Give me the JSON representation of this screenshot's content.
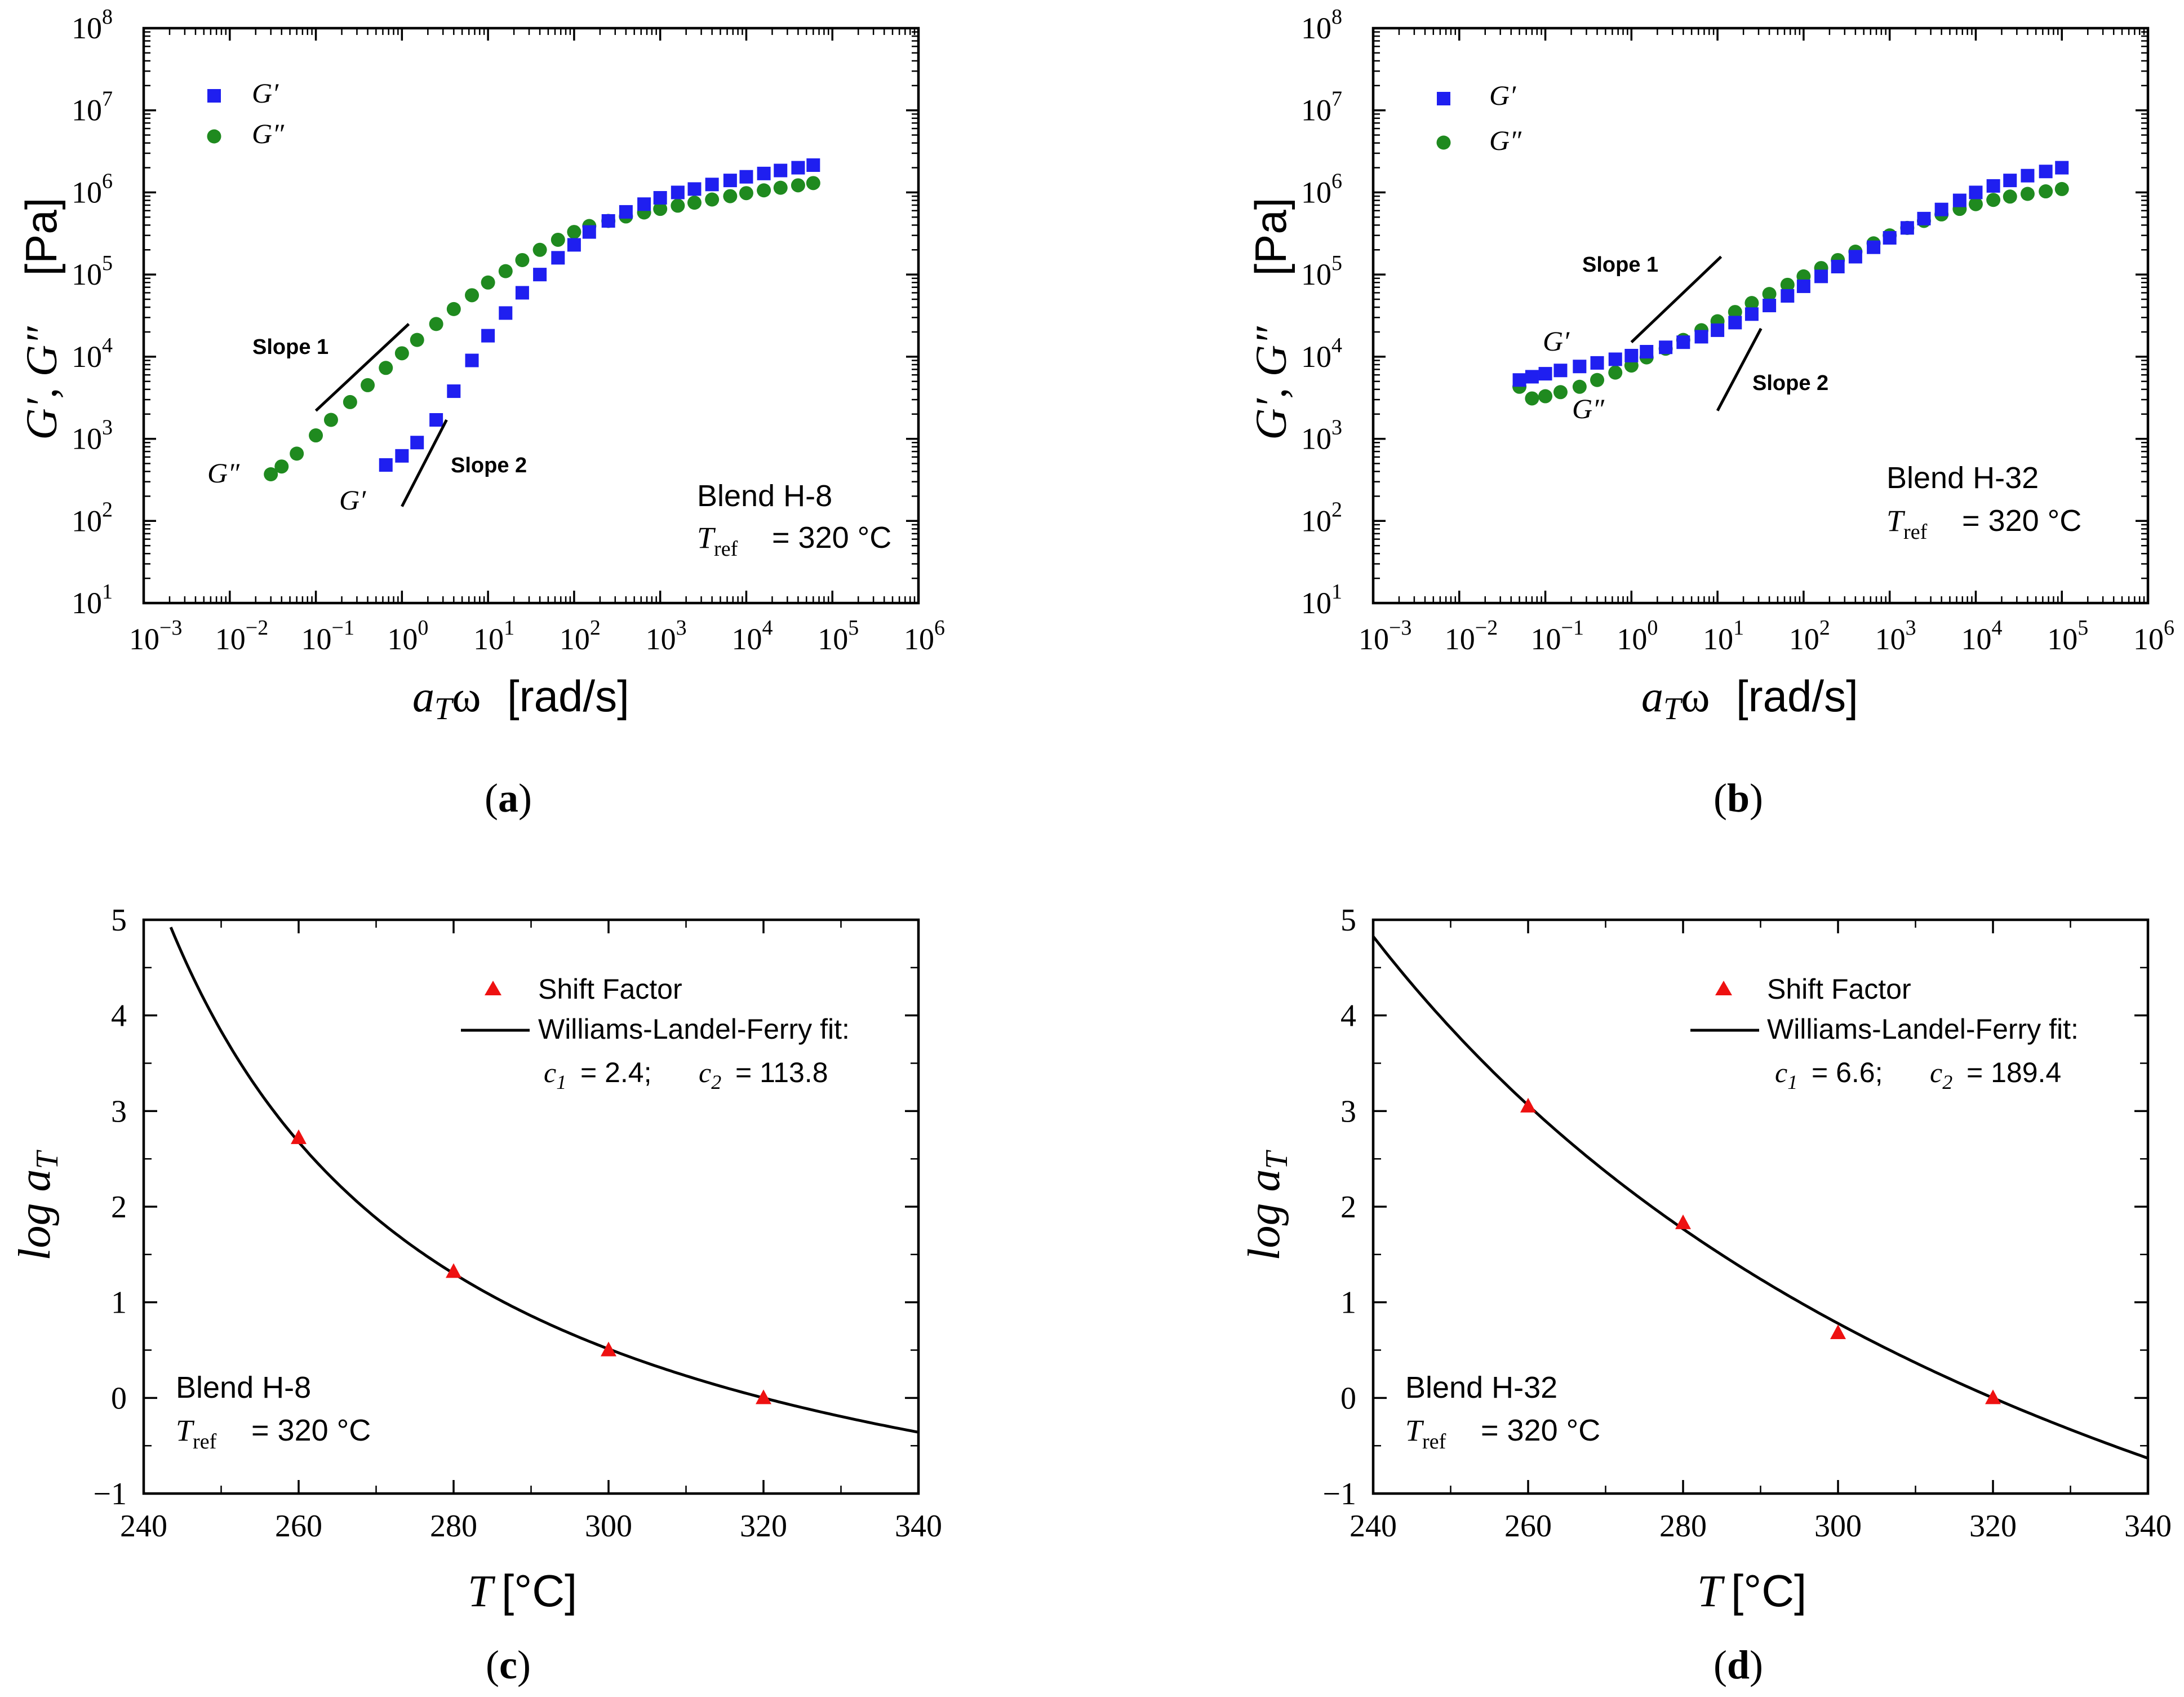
{
  "colors": {
    "gprime": "#1f1ff0",
    "gdouble": "#1f8a1f",
    "shift": "#ee1111",
    "fit": "#000000"
  },
  "chart_data": [
    {
      "panel": "a",
      "caption": "(a)",
      "type": "scatter",
      "xscale": "log",
      "yscale": "log",
      "xlabel": "a_T ω [rad/s]",
      "ylabel": "G′, G″ [Pa]",
      "xlim": [
        0.001,
        1000000
      ],
      "ylim": [
        10,
        100000000
      ],
      "x_tick_exponents": [
        -3,
        -2,
        -1,
        0,
        1,
        2,
        3,
        4,
        5,
        6
      ],
      "y_tick_exponents": [
        1,
        2,
        3,
        4,
        5,
        6,
        7,
        8
      ],
      "legend": {
        "position": "top-left",
        "entries": [
          "G′",
          "G″"
        ]
      },
      "sample": "Blend H-8",
      "tref": "= 320 °C",
      "curve_labels": {
        "gprime": "G′",
        "gdouble": "G″"
      },
      "slope_labels": {
        "slope1": "Slope 1",
        "slope2": "Slope 2"
      },
      "slope_lines": {
        "slope1": [
          [
            0.1,
            2200
          ],
          [
            1.2,
            25000
          ]
        ],
        "slope2": [
          [
            1.0,
            150
          ],
          [
            3.3,
            1700
          ]
        ]
      },
      "series": [
        {
          "name": "G′",
          "x": [
            0.65,
            1,
            1.5,
            2.5,
            4,
            6.5,
            10,
            16,
            25,
            40,
            65,
            100,
            150,
            250,
            400,
            650,
            1000,
            1600,
            2500,
            4000,
            6500,
            10000,
            16000,
            25000,
            40000,
            60000
          ],
          "y": [
            480,
            620,
            900,
            1700,
            3800,
            9000,
            18000,
            34000,
            60000,
            100000,
            160000,
            230000,
            330000,
            450000,
            580000,
            720000,
            860000,
            1000000,
            1100000,
            1250000,
            1400000,
            1550000,
            1700000,
            1850000,
            2000000,
            2150000
          ]
        },
        {
          "name": "G″",
          "x": [
            0.03,
            0.04,
            0.06,
            0.1,
            0.15,
            0.25,
            0.4,
            0.65,
            1,
            1.5,
            2.5,
            4,
            6.5,
            10,
            16,
            25,
            40,
            65,
            100,
            150,
            250,
            400,
            650,
            1000,
            1600,
            2500,
            4000,
            6500,
            10000,
            16000,
            25000,
            40000,
            60000
          ],
          "y": [
            370,
            460,
            660,
            1100,
            1700,
            2800,
            4500,
            7300,
            11000,
            16000,
            25000,
            38000,
            56000,
            80000,
            110000,
            150000,
            200000,
            265000,
            330000,
            390000,
            450000,
            510000,
            570000,
            630000,
            690000,
            750000,
            820000,
            900000,
            980000,
            1060000,
            1140000,
            1220000,
            1300000
          ]
        }
      ]
    },
    {
      "panel": "b",
      "caption": "(b)",
      "type": "scatter",
      "xscale": "log",
      "yscale": "log",
      "xlabel": "a_T ω [rad/s]",
      "ylabel": "G′, G″ [Pa]",
      "xlim": [
        0.001,
        1000000
      ],
      "ylim": [
        10,
        100000000
      ],
      "x_tick_exponents": [
        -3,
        -2,
        -1,
        0,
        1,
        2,
        3,
        4,
        5,
        6
      ],
      "y_tick_exponents": [
        1,
        2,
        3,
        4,
        5,
        6,
        7,
        8
      ],
      "legend": {
        "position": "top-left",
        "entries": [
          "G′",
          "G″"
        ]
      },
      "sample": "Blend H-32",
      "tref": "= 320 °C",
      "curve_labels": {
        "gprime": "G′",
        "gdouble": "G″"
      },
      "slope_labels": {
        "slope1": "Slope 1",
        "slope2": "Slope 2"
      },
      "slope_lines": {
        "slope1": [
          [
            1.0,
            15000
          ],
          [
            11,
            165000
          ]
        ],
        "slope2": [
          [
            10,
            2200
          ],
          [
            32,
            22000
          ]
        ]
      },
      "series": [
        {
          "name": "G′",
          "x": [
            0.05,
            0.07,
            0.1,
            0.15,
            0.25,
            0.4,
            0.65,
            1,
            1.5,
            2.5,
            4,
            6.5,
            10,
            16,
            25,
            40,
            65,
            100,
            160,
            250,
            400,
            650,
            1000,
            1600,
            2500,
            4000,
            6500,
            10000,
            16000,
            25000,
            40000,
            65000,
            100000
          ],
          "y": [
            5200,
            5700,
            6200,
            6800,
            7600,
            8400,
            9300,
            10300,
            11500,
            13000,
            15000,
            17500,
            21000,
            26000,
            33000,
            42000,
            55000,
            72000,
            95000,
            125000,
            165000,
            215000,
            280000,
            370000,
            480000,
            620000,
            800000,
            1000000,
            1200000,
            1400000,
            1600000,
            1800000,
            2000000
          ]
        },
        {
          "name": "G″",
          "x": [
            0.05,
            0.07,
            0.1,
            0.15,
            0.25,
            0.4,
            0.65,
            1,
            1.5,
            2.5,
            4,
            6.5,
            10,
            16,
            25,
            40,
            65,
            100,
            160,
            250,
            400,
            650,
            1000,
            1600,
            2500,
            4000,
            6500,
            10000,
            16000,
            25000,
            40000,
            65000,
            100000
          ],
          "y": [
            4300,
            3100,
            3300,
            3700,
            4300,
            5200,
            6400,
            7800,
            9800,
            12500,
            16000,
            21000,
            27000,
            35000,
            45000,
            58000,
            75000,
            95000,
            120000,
            150000,
            190000,
            240000,
            300000,
            370000,
            450000,
            540000,
            630000,
            720000,
            810000,
            890000,
            960000,
            1030000,
            1100000
          ]
        }
      ]
    },
    {
      "panel": "c",
      "caption": "(c)",
      "type": "scatter",
      "xlabel": "T [°C]",
      "ylabel": "log a_T",
      "xlim": [
        240,
        340
      ],
      "ylim": [
        -1,
        5
      ],
      "x_ticks": [
        240,
        260,
        280,
        300,
        320,
        340
      ],
      "y_ticks": [
        -1,
        0,
        1,
        2,
        3,
        4,
        5
      ],
      "x_tick_labels": [
        "240",
        "260",
        "280",
        "300",
        "320",
        "340"
      ],
      "y_tick_labels": [
        "−1",
        "0",
        "1",
        "2",
        "3",
        "4",
        "5"
      ],
      "legend": {
        "position": "top-right",
        "marker_label": "Shift Factor",
        "line_label": "Williams-Landel-Ferry fit:",
        "params": "c1 = 2.4; c2 = 113.8"
      },
      "params_text": {
        "c1": "= 2.4;",
        "c2": "= 113.8"
      },
      "sample": "Blend H-8",
      "tref": "= 320 °C",
      "wlf": {
        "c1": 2.4,
        "c2": 113.8,
        "tref": 320
      },
      "series": [
        {
          "name": "Shift Factor",
          "x": [
            260,
            280,
            300,
            320
          ],
          "y": [
            2.72,
            1.32,
            0.5,
            0.0
          ]
        }
      ]
    },
    {
      "panel": "d",
      "caption": "(d)",
      "type": "scatter",
      "xlabel": "T [°C]",
      "ylabel": "log a_T",
      "xlim": [
        240,
        340
      ],
      "ylim": [
        -1,
        5
      ],
      "x_ticks": [
        240,
        260,
        280,
        300,
        320,
        340
      ],
      "y_ticks": [
        -1,
        0,
        1,
        2,
        3,
        4,
        5
      ],
      "x_tick_labels": [
        "240",
        "260",
        "280",
        "300",
        "320",
        "340"
      ],
      "y_tick_labels": [
        "−1",
        "0",
        "1",
        "2",
        "3",
        "4",
        "5"
      ],
      "legend": {
        "position": "top-right",
        "marker_label": "Shift Factor",
        "line_label": "Williams-Landel-Ferry fit:",
        "params": "c1 = 6.6; c2 = 189.4"
      },
      "params_text": {
        "c1": "= 6.6;",
        "c2": "= 189.4"
      },
      "sample": "Blend H-32",
      "tref": "= 320 °C",
      "wlf": {
        "c1": 6.6,
        "c2": 189.4,
        "tref": 320
      },
      "series": [
        {
          "name": "Shift Factor",
          "x": [
            260,
            280,
            300,
            320
          ],
          "y": [
            3.05,
            1.83,
            0.68,
            0.0
          ]
        }
      ]
    }
  ]
}
